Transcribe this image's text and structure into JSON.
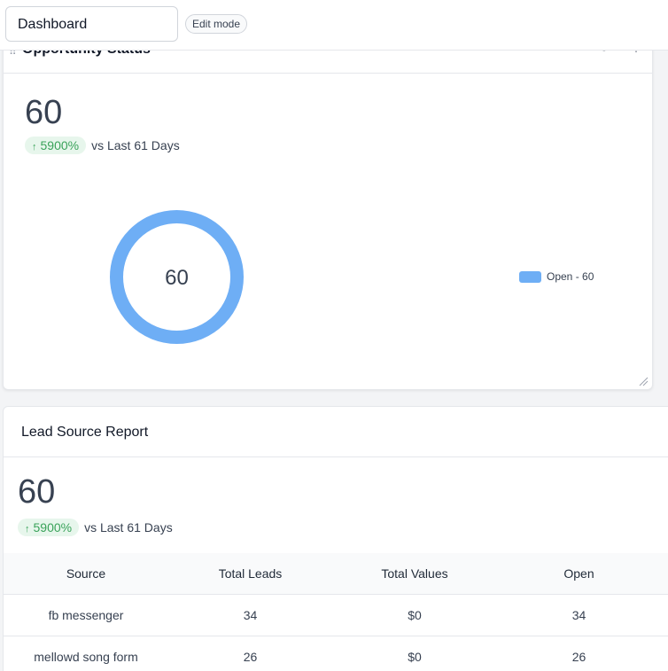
{
  "topbar": {
    "dashboard_select": "Dashboard",
    "edit_mode_label": "Edit mode"
  },
  "opportunity_card": {
    "title": "Opportunity Status",
    "total": "60",
    "trend_percent": "5900%",
    "trend_label": "vs Last 61 Days",
    "donut_center": "60",
    "legend": [
      {
        "label": "Open - 60",
        "color": "#6eaef5"
      }
    ]
  },
  "lead_source_card": {
    "title": "Lead Source Report",
    "total": "60",
    "trend_percent": "5900%",
    "trend_label": "vs Last 61 Days",
    "table": {
      "columns": [
        "Source",
        "Total Leads",
        "Total Values",
        "Open"
      ],
      "rows": [
        [
          "fb messenger",
          "34",
          "$0",
          "34"
        ],
        [
          "mellowd song form",
          "26",
          "$0",
          "26"
        ]
      ]
    }
  },
  "colors": {
    "accent_blue": "#6eaef5",
    "trend_green": "#3aa35a",
    "trend_bg": "#e7f6ec"
  }
}
